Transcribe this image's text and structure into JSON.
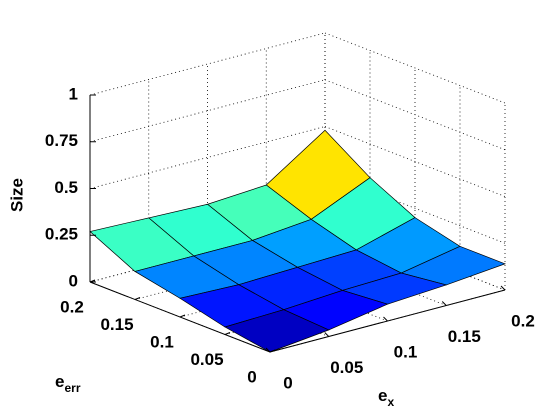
{
  "chart_data": {
    "type": "surface",
    "zlabel": "Size",
    "xlabel": "e",
    "xlabel_sub": "x",
    "ylabel": "e",
    "ylabel_sub": "err",
    "x": [
      0,
      0.05,
      0.1,
      0.15,
      0.2
    ],
    "y": [
      0,
      0.05,
      0.1,
      0.15,
      0.2
    ],
    "z": [
      [
        0,
        0.035,
        0.09,
        0.11,
        0.14
      ],
      [
        0.04,
        0.05,
        0.07,
        0.08,
        0.14
      ],
      [
        0.1,
        0.09,
        0.1,
        0.11,
        0.2
      ],
      [
        0.15,
        0.15,
        0.15,
        0.18,
        0.32
      ],
      [
        0.27,
        0.26,
        0.25,
        0.27,
        0.48
      ]
    ],
    "xlim": [
      0,
      0.2
    ],
    "ylim": [
      0,
      0.2
    ],
    "zlim": [
      0,
      1
    ],
    "xticks": [
      0,
      0.05,
      0.1,
      0.15,
      0.2
    ],
    "yticks": [
      0,
      0.05,
      0.1,
      0.15,
      0.2
    ],
    "zticks": [
      0,
      0.25,
      0.5,
      0.75,
      1
    ],
    "colormap": "jet",
    "grid": true
  }
}
